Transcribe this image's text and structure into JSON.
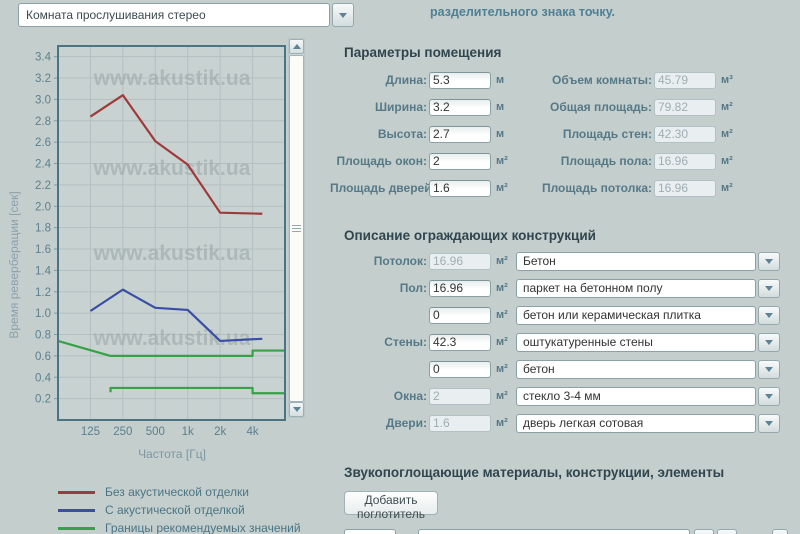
{
  "window": {
    "room_preset": "Комната прослушивания стерео",
    "note": "разделительного знака точку."
  },
  "room_params": {
    "title": "Параметры помещения",
    "left": [
      {
        "label": "Длина:",
        "value": "5.3",
        "unit": "м",
        "disabled": false
      },
      {
        "label": "Ширина:",
        "value": "3.2",
        "unit": "м",
        "disabled": false
      },
      {
        "label": "Высота:",
        "value": "2.7",
        "unit": "м",
        "disabled": false
      },
      {
        "label": "Площадь окон:",
        "value": "2",
        "unit": "м²",
        "disabled": false
      },
      {
        "label": "Площадь дверей:",
        "value": "1.6",
        "unit": "м²",
        "disabled": false
      }
    ],
    "right": [
      {
        "label": "Объем комнаты:",
        "value": "45.79",
        "unit": "м³",
        "disabled": true
      },
      {
        "label": "Общая площадь:",
        "value": "79.82",
        "unit": "м²",
        "disabled": true
      },
      {
        "label": "Площадь стен:",
        "value": "42.30",
        "unit": "м²",
        "disabled": true
      },
      {
        "label": "Площадь пола:",
        "value": "16.96",
        "unit": "м²",
        "disabled": true
      },
      {
        "label": "Площадь потолка:",
        "value": "16.96",
        "unit": "м²",
        "disabled": true
      }
    ]
  },
  "constructions": {
    "title": "Описание ограждающих конструкций",
    "rows": [
      {
        "label": "Потолок:",
        "area": "16.96",
        "unit": "м²",
        "disabled": true,
        "material": "Бетон"
      },
      {
        "label": "Пол:",
        "area": "16.96",
        "unit": "м²",
        "disabled": false,
        "material": "паркет на бетонном полу"
      },
      {
        "label": "",
        "area": "0",
        "unit": "м²",
        "disabled": false,
        "material": "бетон или керамическая плитка"
      },
      {
        "label": "Стены:",
        "area": "42.3",
        "unit": "м²",
        "disabled": false,
        "material": "оштукатуренные стены"
      },
      {
        "label": "",
        "area": "0",
        "unit": "м²",
        "disabled": false,
        "material": "бетон"
      },
      {
        "label": "Окна:",
        "area": "2",
        "unit": "м²",
        "disabled": true,
        "material": "стекло 3-4 мм"
      },
      {
        "label": "Двери:",
        "area": "1.6",
        "unit": "м²",
        "disabled": true,
        "material": "дверь легкая сотовая"
      }
    ]
  },
  "absorbers": {
    "title": "Звукопоглощающие материалы, конструкции, элементы",
    "add_button": "Добавить поглотитель"
  },
  "legend": [
    {
      "label": "Без акустической отделки",
      "color": "#a03a3a"
    },
    {
      "label": "С акустической отделкой",
      "color": "#3a4ea5"
    },
    {
      "label": "Границы рекомендуемых значений",
      "color": "#36a146"
    }
  ],
  "chart_data": {
    "type": "line",
    "xlabel": "Частота [Гц]",
    "ylabel": "Время реверберации [сек]",
    "x_tick_labels": [
      "125",
      "250",
      "500",
      "1k",
      "2k",
      "4k"
    ],
    "x_index_range": [
      -1,
      6
    ],
    "ylim": [
      0,
      3.5
    ],
    "yticks": [
      0.2,
      0.4,
      0.6,
      0.8,
      1.0,
      1.2,
      1.4,
      1.6,
      1.8,
      2.0,
      2.2,
      2.4,
      2.6,
      2.8,
      3.0,
      3.2,
      3.4
    ],
    "grid": true,
    "watermark": "www.akustik.ua",
    "series": [
      {
        "name": "Без акустической отделки",
        "color": "#a03a3a",
        "x": [
          0,
          1,
          2,
          3,
          4,
          5.3
        ],
        "y": [
          2.84,
          3.04,
          2.61,
          2.39,
          1.94,
          1.93
        ]
      },
      {
        "name": "С акустической отделкой",
        "color": "#3a4ea5",
        "x": [
          0,
          1,
          2,
          3,
          4,
          5.3
        ],
        "y": [
          1.02,
          1.22,
          1.05,
          1.03,
          0.74,
          0.76
        ]
      },
      {
        "name": "Границы рекомендуемых значений (верхняя)",
        "color": "#36a146",
        "x": [
          -1,
          0.62,
          5,
          5,
          6
        ],
        "y": [
          0.74,
          0.6,
          0.6,
          0.65,
          0.65
        ]
      },
      {
        "name": "Границы рекомендуемых значений (нижняя)",
        "color": "#36a146",
        "x": [
          0.62,
          0.62,
          5,
          5,
          6
        ],
        "y": [
          0.26,
          0.3,
          0.3,
          0.25,
          0.25
        ]
      }
    ]
  }
}
